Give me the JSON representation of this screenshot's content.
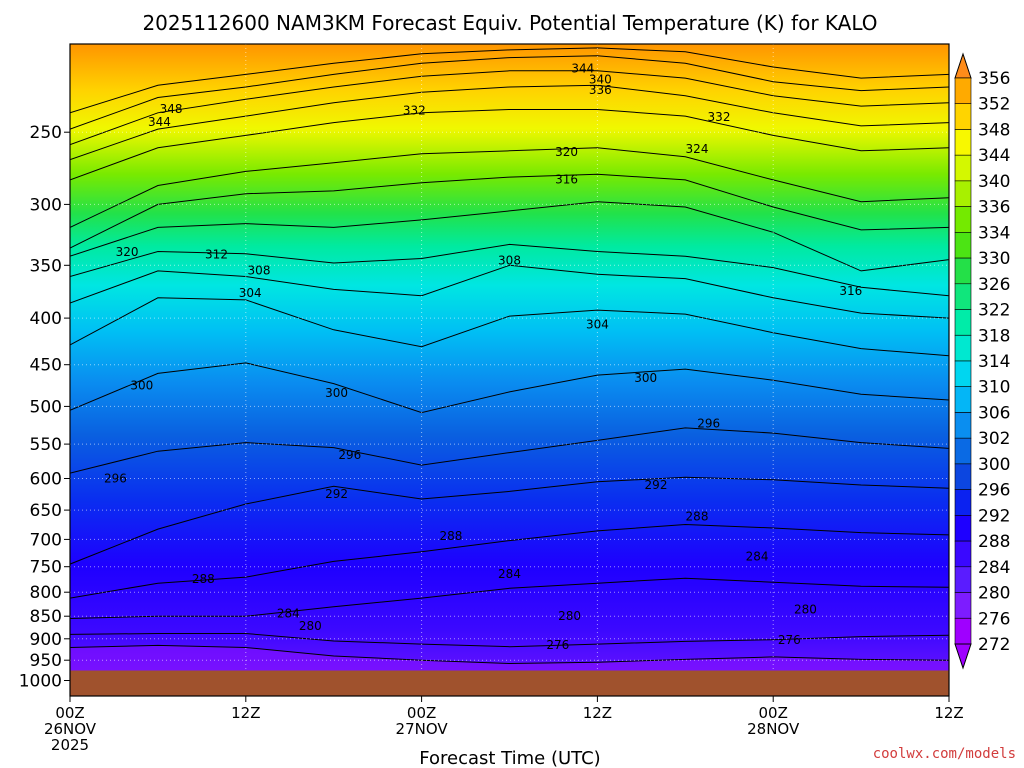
{
  "chart_data": {
    "type": "area",
    "title": "2025112600 NAM3KM Forecast Equiv. Potential Temperature (K) for KALO",
    "xlabel": "Forecast Time (UTC)",
    "ylabel": "",
    "credit": "coolwx.com/models",
    "x_range_hours": [
      0,
      60
    ],
    "y_range_hpa": [
      1040,
      200
    ],
    "y_scale": "log",
    "y_ticks": [
      250,
      300,
      350,
      400,
      450,
      500,
      550,
      600,
      650,
      700,
      750,
      800,
      850,
      900,
      950,
      1000
    ],
    "x_ticks": [
      {
        "hour": 0,
        "lines": [
          "00Z",
          "26NOV",
          "2025"
        ]
      },
      {
        "hour": 12,
        "lines": [
          "12Z"
        ]
      },
      {
        "hour": 24,
        "lines": [
          "00Z",
          "27NOV"
        ]
      },
      {
        "hour": 36,
        "lines": [
          "12Z"
        ]
      },
      {
        "hour": 48,
        "lines": [
          "00Z",
          "28NOV"
        ]
      },
      {
        "hour": 60,
        "lines": [
          "12Z"
        ]
      }
    ],
    "colorbar": {
      "levels": [
        272,
        276,
        280,
        284,
        288,
        292,
        296,
        300,
        302,
        306,
        310,
        314,
        318,
        322,
        326,
        330,
        334,
        336,
        340,
        344,
        348,
        352,
        356
      ],
      "colors": [
        "#9f00ff",
        "#7d1cff",
        "#5a1cff",
        "#3a08ff",
        "#1e00ff",
        "#0b22f0",
        "#0c46e0",
        "#0a6ae4",
        "#0a8ef0",
        "#04b6f6",
        "#00d6f0",
        "#00e8d0",
        "#00eca8",
        "#10e67c",
        "#24e048",
        "#4ce414",
        "#74ea00",
        "#a8f000",
        "#d4f800",
        "#f8f800",
        "#ffd400",
        "#ffaa00",
        "#ff8c1a"
      ]
    },
    "ground_surface_hpa": 975,
    "isentropes": [
      {
        "theta": 276,
        "points": [
          [
            0,
            920
          ],
          [
            6,
            915
          ],
          [
            12,
            920
          ],
          [
            18,
            940
          ],
          [
            24,
            950
          ],
          [
            30,
            958
          ],
          [
            36,
            955
          ],
          [
            42,
            948
          ],
          [
            48,
            942
          ],
          [
            54,
            948
          ],
          [
            60,
            950
          ]
        ]
      },
      {
        "theta": 280,
        "points": [
          [
            0,
            890
          ],
          [
            6,
            888
          ],
          [
            12,
            888
          ],
          [
            18,
            905
          ],
          [
            24,
            912
          ],
          [
            30,
            918
          ],
          [
            36,
            912
          ],
          [
            42,
            906
          ],
          [
            48,
            902
          ],
          [
            54,
            895
          ],
          [
            60,
            892
          ]
        ]
      },
      {
        "theta": 284,
        "points": [
          [
            0,
            855
          ],
          [
            6,
            850
          ],
          [
            12,
            850
          ],
          [
            18,
            830
          ],
          [
            24,
            812
          ],
          [
            30,
            792
          ],
          [
            36,
            782
          ],
          [
            42,
            772
          ],
          [
            48,
            780
          ],
          [
            54,
            788
          ],
          [
            60,
            790
          ]
        ]
      },
      {
        "theta": 288,
        "points": [
          [
            0,
            812
          ],
          [
            6,
            782
          ],
          [
            12,
            770
          ],
          [
            18,
            740
          ],
          [
            24,
            722
          ],
          [
            30,
            702
          ],
          [
            36,
            685
          ],
          [
            42,
            674
          ],
          [
            48,
            680
          ],
          [
            54,
            688
          ],
          [
            60,
            692
          ]
        ]
      },
      {
        "theta": 292,
        "points": [
          [
            0,
            745
          ],
          [
            6,
            682
          ],
          [
            12,
            640
          ],
          [
            18,
            612
          ],
          [
            24,
            632
          ],
          [
            30,
            620
          ],
          [
            36,
            605
          ],
          [
            42,
            598
          ],
          [
            48,
            602
          ],
          [
            54,
            610
          ],
          [
            60,
            615
          ]
        ]
      },
      {
        "theta": 296,
        "points": [
          [
            0,
            592
          ],
          [
            6,
            560
          ],
          [
            12,
            548
          ],
          [
            18,
            555
          ],
          [
            24,
            580
          ],
          [
            30,
            562
          ],
          [
            36,
            545
          ],
          [
            42,
            528
          ],
          [
            48,
            535
          ],
          [
            54,
            548
          ],
          [
            60,
            556
          ]
        ]
      },
      {
        "theta": 300,
        "points": [
          [
            0,
            505
          ],
          [
            6,
            460
          ],
          [
            12,
            448
          ],
          [
            18,
            472
          ],
          [
            24,
            508
          ],
          [
            30,
            482
          ],
          [
            36,
            462
          ],
          [
            42,
            455
          ],
          [
            48,
            468
          ],
          [
            54,
            485
          ],
          [
            60,
            492
          ]
        ]
      },
      {
        "theta": 304,
        "points": [
          [
            0,
            428
          ],
          [
            6,
            380
          ],
          [
            12,
            382
          ],
          [
            18,
            412
          ],
          [
            24,
            430
          ],
          [
            30,
            398
          ],
          [
            36,
            392
          ],
          [
            42,
            396
          ],
          [
            48,
            415
          ],
          [
            54,
            432
          ],
          [
            60,
            440
          ]
        ]
      },
      {
        "theta": 308,
        "points": [
          [
            0,
            385
          ],
          [
            6,
            355
          ],
          [
            12,
            360
          ],
          [
            18,
            372
          ],
          [
            24,
            378
          ],
          [
            30,
            350
          ],
          [
            36,
            358
          ],
          [
            42,
            362
          ],
          [
            48,
            380
          ],
          [
            54,
            395
          ],
          [
            60,
            400
          ]
        ]
      },
      {
        "theta": 312,
        "points": [
          [
            0,
            360
          ],
          [
            6,
            338
          ],
          [
            12,
            340
          ],
          [
            18,
            348
          ],
          [
            24,
            344
          ],
          [
            30,
            332
          ],
          [
            36,
            338
          ],
          [
            42,
            342
          ],
          [
            48,
            352
          ],
          [
            54,
            370
          ],
          [
            60,
            378
          ]
        ]
      },
      {
        "theta": 316,
        "points": [
          [
            0,
            342
          ],
          [
            6,
            318
          ],
          [
            12,
            315
          ],
          [
            18,
            318
          ],
          [
            24,
            312
          ],
          [
            30,
            305
          ],
          [
            36,
            298
          ],
          [
            42,
            302
          ],
          [
            48,
            322
          ],
          [
            54,
            355
          ],
          [
            60,
            345
          ]
        ]
      },
      {
        "theta": 320,
        "points": [
          [
            0,
            335
          ],
          [
            6,
            300
          ],
          [
            12,
            292
          ],
          [
            18,
            290
          ],
          [
            24,
            284
          ],
          [
            30,
            280
          ],
          [
            36,
            278
          ],
          [
            42,
            282
          ],
          [
            48,
            302
          ],
          [
            54,
            320
          ],
          [
            60,
            318
          ]
        ]
      },
      {
        "theta": 324,
        "points": [
          [
            0,
            318
          ],
          [
            6,
            286
          ],
          [
            12,
            276
          ],
          [
            18,
            270
          ],
          [
            24,
            264
          ],
          [
            30,
            262
          ],
          [
            36,
            260
          ],
          [
            42,
            266
          ],
          [
            48,
            282
          ],
          [
            54,
            298
          ],
          [
            60,
            295
          ]
        ]
      },
      {
        "theta": 332,
        "points": [
          [
            0,
            282
          ],
          [
            6,
            260
          ],
          [
            12,
            252
          ],
          [
            18,
            244
          ],
          [
            24,
            238
          ],
          [
            30,
            236
          ],
          [
            36,
            236
          ],
          [
            42,
            240
          ],
          [
            48,
            252
          ],
          [
            54,
            262
          ],
          [
            60,
            260
          ]
        ]
      },
      {
        "theta": 336,
        "points": [
          [
            0,
            268
          ],
          [
            6,
            248
          ],
          [
            12,
            240
          ],
          [
            18,
            232
          ],
          [
            24,
            226
          ],
          [
            30,
            223
          ],
          [
            36,
            222
          ],
          [
            42,
            228
          ],
          [
            48,
            238
          ],
          [
            54,
            246
          ],
          [
            60,
            244
          ]
        ]
      },
      {
        "theta": 340,
        "points": [
          [
            0,
            258
          ],
          [
            6,
            238
          ],
          [
            12,
            230
          ],
          [
            18,
            223
          ],
          [
            24,
            217
          ],
          [
            30,
            214
          ],
          [
            36,
            214
          ],
          [
            42,
            218
          ],
          [
            48,
            228
          ],
          [
            54,
            234
          ],
          [
            60,
            232
          ]
        ]
      },
      {
        "theta": 344,
        "points": [
          [
            0,
            248
          ],
          [
            6,
            229
          ],
          [
            12,
            223
          ],
          [
            18,
            216
          ],
          [
            24,
            210
          ],
          [
            30,
            207
          ],
          [
            36,
            206
          ],
          [
            42,
            210
          ],
          [
            48,
            220
          ],
          [
            54,
            225
          ],
          [
            60,
            223
          ]
        ]
      },
      {
        "theta": 348,
        "points": [
          [
            0,
            238
          ],
          [
            6,
            222
          ],
          [
            12,
            216
          ],
          [
            18,
            210
          ],
          [
            24,
            205
          ],
          [
            30,
            203
          ],
          [
            36,
            202
          ],
          [
            42,
            204
          ],
          [
            48,
            212
          ],
          [
            54,
            218
          ],
          [
            60,
            216
          ]
        ]
      }
    ],
    "contour_labels": [
      {
        "text": "344",
        "x_hour": 35.0,
        "p_hpa": 213
      },
      {
        "text": "340",
        "x_hour": 36.2,
        "p_hpa": 219
      },
      {
        "text": "336",
        "x_hour": 36.2,
        "p_hpa": 225
      },
      {
        "text": "348",
        "x_hour": 6.9,
        "p_hpa": 236
      },
      {
        "text": "344",
        "x_hour": 6.1,
        "p_hpa": 244
      },
      {
        "text": "332",
        "x_hour": 23.5,
        "p_hpa": 237
      },
      {
        "text": "332",
        "x_hour": 44.3,
        "p_hpa": 241
      },
      {
        "text": "324",
        "x_hour": 42.8,
        "p_hpa": 261
      },
      {
        "text": "320",
        "x_hour": 33.9,
        "p_hpa": 263
      },
      {
        "text": "316",
        "x_hour": 33.9,
        "p_hpa": 282
      },
      {
        "text": "320",
        "x_hour": 3.9,
        "p_hpa": 339
      },
      {
        "text": "312",
        "x_hour": 10.0,
        "p_hpa": 341
      },
      {
        "text": "308",
        "x_hour": 12.9,
        "p_hpa": 355
      },
      {
        "text": "308",
        "x_hour": 30.0,
        "p_hpa": 346
      },
      {
        "text": "304",
        "x_hour": 12.3,
        "p_hpa": 376
      },
      {
        "text": "316",
        "x_hour": 53.3,
        "p_hpa": 374
      },
      {
        "text": "304",
        "x_hour": 36.0,
        "p_hpa": 407
      },
      {
        "text": "300",
        "x_hour": 4.9,
        "p_hpa": 475
      },
      {
        "text": "300",
        "x_hour": 18.2,
        "p_hpa": 484
      },
      {
        "text": "300",
        "x_hour": 39.3,
        "p_hpa": 466
      },
      {
        "text": "296",
        "x_hour": 43.6,
        "p_hpa": 523
      },
      {
        "text": "296",
        "x_hour": 19.1,
        "p_hpa": 566
      },
      {
        "text": "296",
        "x_hour": 3.1,
        "p_hpa": 601
      },
      {
        "text": "292",
        "x_hour": 40.0,
        "p_hpa": 611
      },
      {
        "text": "292",
        "x_hour": 18.2,
        "p_hpa": 625
      },
      {
        "text": "288",
        "x_hour": 42.8,
        "p_hpa": 661
      },
      {
        "text": "288",
        "x_hour": 26.0,
        "p_hpa": 695
      },
      {
        "text": "284",
        "x_hour": 46.9,
        "p_hpa": 732
      },
      {
        "text": "284",
        "x_hour": 30.0,
        "p_hpa": 765
      },
      {
        "text": "288",
        "x_hour": 9.1,
        "p_hpa": 775
      },
      {
        "text": "284",
        "x_hour": 14.9,
        "p_hpa": 845
      },
      {
        "text": "280",
        "x_hour": 50.2,
        "p_hpa": 837
      },
      {
        "text": "280",
        "x_hour": 34.1,
        "p_hpa": 851
      },
      {
        "text": "280",
        "x_hour": 16.4,
        "p_hpa": 872
      },
      {
        "text": "276",
        "x_hour": 49.1,
        "p_hpa": 904
      },
      {
        "text": "276",
        "x_hour": 33.3,
        "p_hpa": 915
      }
    ]
  }
}
